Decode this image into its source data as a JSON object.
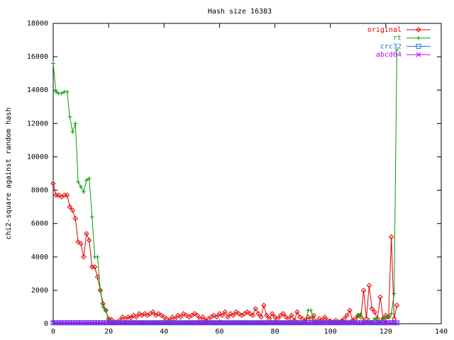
{
  "chart_data": {
    "type": "line",
    "title": "Hash size 16383",
    "y_label": "chi2-square against random hash",
    "x": [
      0,
      1,
      2,
      3,
      4,
      5,
      6,
      7,
      8,
      9,
      10,
      11,
      12,
      13,
      14,
      15,
      16,
      17,
      18,
      19,
      20,
      21,
      22,
      23,
      24,
      25,
      26,
      27,
      28,
      29,
      30,
      31,
      32,
      33,
      34,
      35,
      36,
      37,
      38,
      39,
      40,
      41,
      42,
      43,
      44,
      45,
      46,
      47,
      48,
      49,
      50,
      51,
      52,
      53,
      54,
      55,
      56,
      57,
      58,
      59,
      60,
      61,
      62,
      63,
      64,
      65,
      66,
      67,
      68,
      69,
      70,
      71,
      72,
      73,
      74,
      75,
      76,
      77,
      78,
      79,
      80,
      81,
      82,
      83,
      84,
      85,
      86,
      87,
      88,
      89,
      90,
      91,
      92,
      93,
      94,
      95,
      96,
      97,
      98,
      99,
      100,
      101,
      102,
      103,
      104,
      105,
      106,
      107,
      108,
      109,
      110,
      111,
      112,
      113,
      114,
      115,
      116,
      117,
      118,
      119,
      120,
      121,
      122,
      123,
      124
    ],
    "series": [
      {
        "name": "original",
        "color": "#e00000",
        "marker": "diamond",
        "values": [
          8400,
          7700,
          7700,
          7600,
          7700,
          7700,
          7000,
          6800,
          6300,
          4900,
          4800,
          4000,
          5400,
          5000,
          3400,
          3400,
          2800,
          2000,
          1200,
          800,
          300,
          250,
          100,
          100,
          200,
          400,
          300,
          400,
          350,
          500,
          400,
          600,
          500,
          600,
          500,
          600,
          700,
          500,
          600,
          500,
          400,
          300,
          200,
          400,
          300,
          500,
          400,
          600,
          500,
          400,
          500,
          600,
          500,
          300,
          400,
          200,
          300,
          400,
          500,
          400,
          600,
          500,
          700,
          400,
          600,
          500,
          700,
          600,
          500,
          600,
          700,
          600,
          500,
          900,
          600,
          400,
          1100,
          500,
          300,
          600,
          400,
          300,
          500,
          600,
          400,
          300,
          500,
          200,
          700,
          400,
          300,
          200,
          400,
          300,
          500,
          100,
          300,
          200,
          400,
          200,
          150,
          100,
          200,
          100,
          150,
          300,
          500,
          800,
          200,
          300,
          500,
          400,
          2000,
          300,
          2300,
          900,
          700,
          300,
          1600,
          300,
          500,
          400,
          5200,
          300,
          1100
        ]
      },
      {
        "name": "rt",
        "color": "#00a000",
        "marker": "plus",
        "values": [
          15600,
          13900,
          13800,
          13800,
          13900,
          13900,
          12400,
          11500,
          12000,
          8500,
          8200,
          7900,
          8600,
          8700,
          6400,
          4000,
          4000,
          2000,
          1000,
          800,
          200,
          50,
          50,
          50,
          50,
          50,
          50,
          50,
          50,
          50,
          50,
          50,
          50,
          50,
          50,
          50,
          50,
          50,
          50,
          50,
          50,
          50,
          50,
          50,
          50,
          50,
          50,
          50,
          50,
          50,
          50,
          50,
          50,
          50,
          50,
          50,
          50,
          50,
          50,
          50,
          50,
          50,
          50,
          50,
          50,
          50,
          50,
          50,
          50,
          50,
          50,
          50,
          50,
          50,
          50,
          50,
          50,
          50,
          50,
          50,
          50,
          50,
          50,
          50,
          50,
          50,
          50,
          50,
          50,
          50,
          50,
          50,
          800,
          800,
          200,
          100,
          100,
          100,
          100,
          100,
          100,
          100,
          100,
          100,
          100,
          100,
          100,
          100,
          100,
          100,
          500,
          600,
          200,
          100,
          200,
          100,
          300,
          200,
          100,
          300,
          300,
          400,
          600,
          1800,
          16400
        ]
      },
      {
        "name": "crc32",
        "color": "#2070e0",
        "marker": "square",
        "values": [
          60,
          60,
          60,
          60,
          60,
          60,
          60,
          60,
          60,
          60,
          60,
          60,
          60,
          60,
          60,
          60,
          60,
          60,
          60,
          60,
          60,
          60,
          60,
          60,
          60,
          60,
          60,
          60,
          60,
          60,
          60,
          60,
          60,
          60,
          60,
          60,
          60,
          60,
          60,
          60,
          60,
          60,
          60,
          60,
          60,
          60,
          60,
          60,
          60,
          60,
          60,
          60,
          60,
          60,
          60,
          60,
          60,
          60,
          60,
          60,
          60,
          60,
          60,
          60,
          60,
          60,
          60,
          60,
          60,
          60,
          60,
          60,
          60,
          60,
          60,
          60,
          60,
          60,
          60,
          60,
          60,
          60,
          60,
          60,
          60,
          60,
          60,
          60,
          60,
          60,
          60,
          60,
          60,
          60,
          60,
          60,
          60,
          60,
          60,
          60,
          60,
          60,
          60,
          60,
          60,
          60,
          60,
          60,
          60,
          60,
          60,
          60,
          60,
          60,
          60,
          60,
          60,
          60,
          60,
          60,
          60,
          60,
          60,
          60,
          60
        ]
      },
      {
        "name": "abcd64",
        "color": "#c000ff",
        "marker": "cross",
        "values": [
          50,
          50,
          50,
          50,
          50,
          50,
          50,
          50,
          50,
          50,
          50,
          50,
          50,
          50,
          50,
          50,
          50,
          50,
          50,
          50,
          50,
          50,
          50,
          50,
          50,
          50,
          50,
          50,
          50,
          50,
          50,
          50,
          50,
          50,
          50,
          50,
          50,
          50,
          50,
          50,
          50,
          50,
          50,
          50,
          50,
          50,
          50,
          50,
          50,
          50,
          50,
          50,
          50,
          50,
          50,
          50,
          50,
          50,
          50,
          50,
          50,
          50,
          50,
          50,
          50,
          50,
          50,
          50,
          50,
          50,
          50,
          50,
          50,
          50,
          50,
          50,
          50,
          50,
          50,
          50,
          50,
          50,
          50,
          50,
          50,
          50,
          50,
          50,
          50,
          50,
          50,
          50,
          50,
          50,
          50,
          50,
          50,
          50,
          50,
          50,
          50,
          50,
          50,
          50,
          50,
          50,
          50,
          50,
          50,
          50,
          50,
          50,
          50,
          50,
          50,
          50,
          50,
          50,
          50,
          50,
          50,
          50,
          50,
          50,
          50
        ]
      }
    ],
    "xlim": [
      0,
      140
    ],
    "ylim": [
      0,
      18000
    ],
    "xticks": [
      0,
      20,
      40,
      60,
      80,
      100,
      120,
      140
    ],
    "yticks": [
      0,
      2000,
      4000,
      6000,
      8000,
      10000,
      12000,
      14000,
      16000,
      18000
    ],
    "grid": false,
    "legend": "top-right"
  }
}
